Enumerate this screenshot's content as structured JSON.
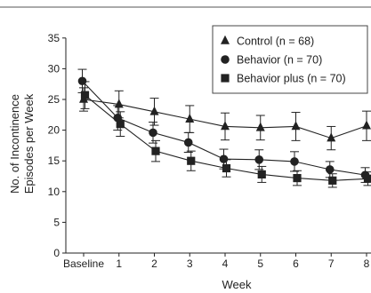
{
  "chart_data": {
    "type": "line",
    "title": "",
    "xlabel": "Week",
    "ylabel": "No. of Incontinence Episodes per Week",
    "categories": [
      "Baseline",
      "1",
      "2",
      "3",
      "4",
      "5",
      "6",
      "7",
      "8"
    ],
    "ylim": [
      0,
      35
    ],
    "yticks": [
      0,
      5,
      10,
      15,
      20,
      25,
      30,
      35
    ],
    "grid": false,
    "legend_position": "top-right",
    "error_bars": true,
    "series": [
      {
        "name": "Control (n = 68)",
        "marker": "triangle",
        "values": [
          25.0,
          24.2,
          23.0,
          21.8,
          20.6,
          20.4,
          20.6,
          18.7,
          20.7
        ],
        "errors": [
          1.9,
          2.2,
          2.2,
          2.2,
          2.2,
          2.0,
          2.3,
          1.9,
          2.4
        ]
      },
      {
        "name": "Behavior (n = 70)",
        "marker": "circle",
        "values": [
          28.0,
          22.0,
          19.6,
          18.0,
          15.3,
          15.2,
          14.9,
          13.6,
          12.7
        ],
        "errors": [
          1.9,
          2.0,
          1.7,
          1.6,
          1.6,
          1.6,
          1.6,
          1.3,
          1.2
        ]
      },
      {
        "name": "Behavior plus (n = 70)",
        "marker": "square",
        "values": [
          25.7,
          21.0,
          16.6,
          15.0,
          13.8,
          12.8,
          12.2,
          11.8,
          12.1
        ],
        "errors": [
          2.2,
          2.0,
          1.7,
          1.6,
          1.4,
          1.3,
          1.2,
          1.1,
          1.1
        ]
      }
    ]
  }
}
